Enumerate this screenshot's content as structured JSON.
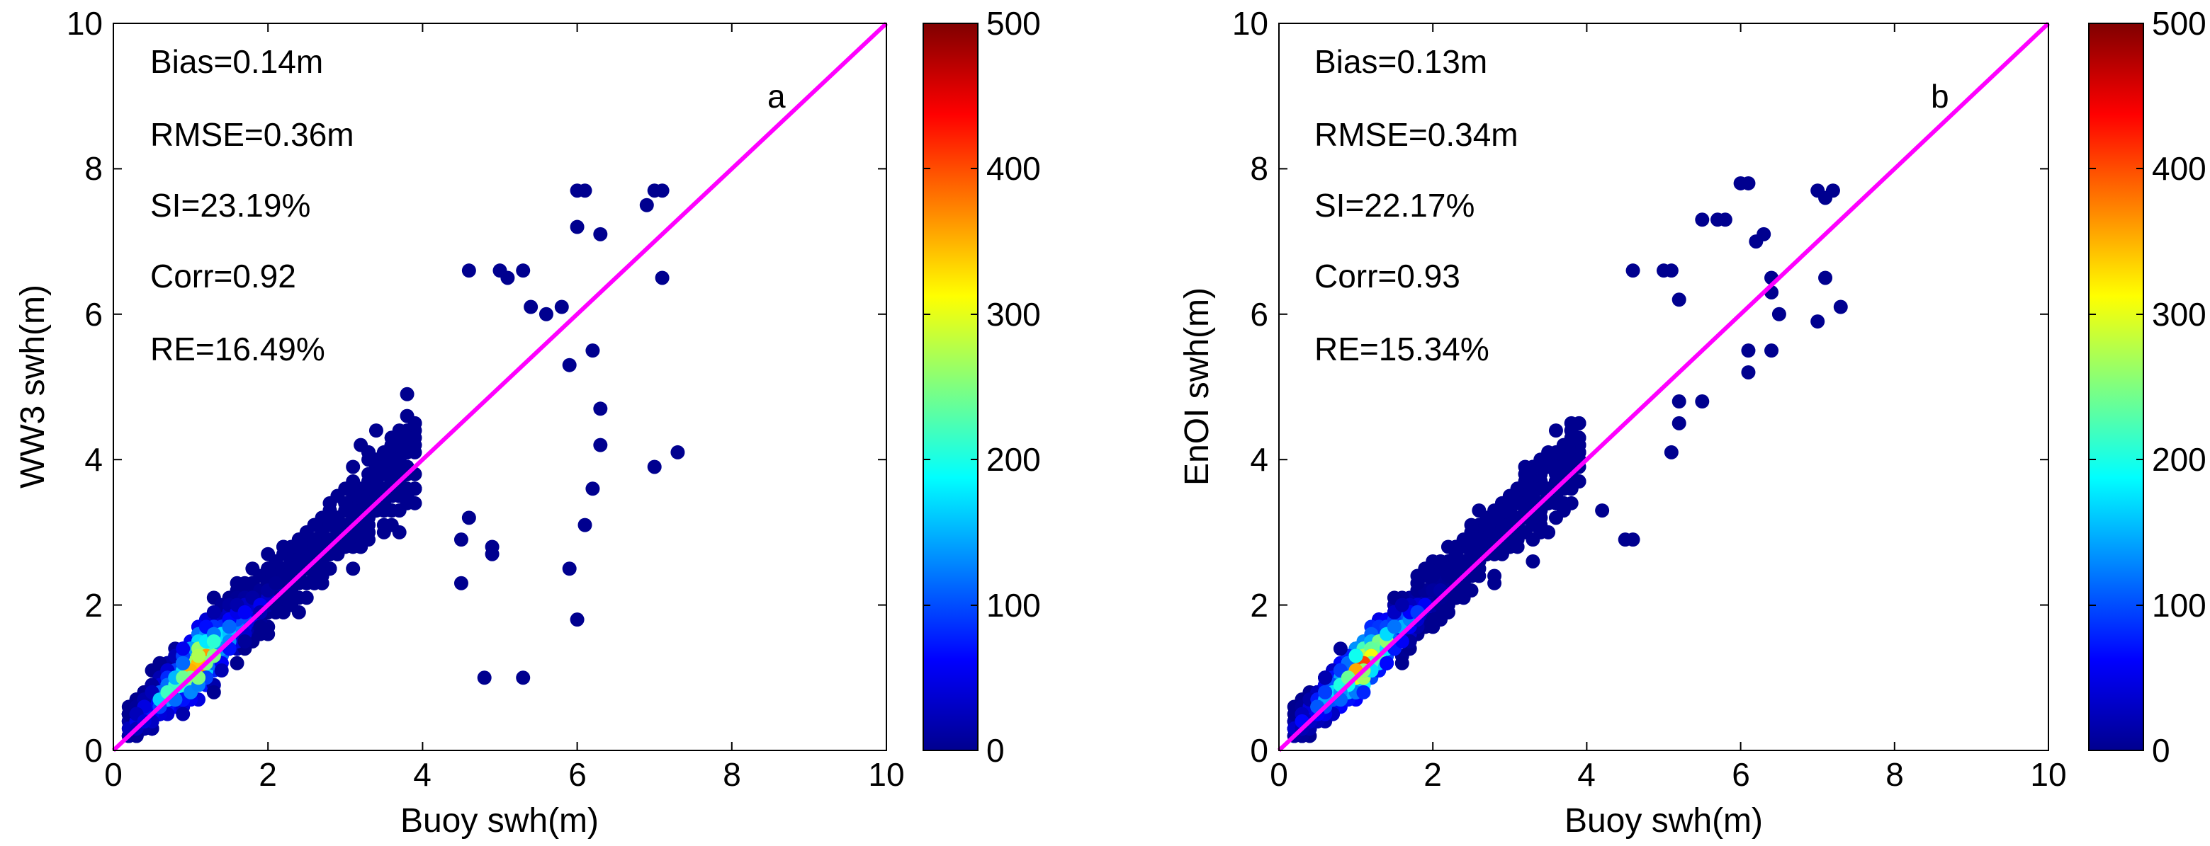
{
  "chart_data": [
    {
      "type": "scatter",
      "panel_label": "a",
      "xlabel": "Buoy swh(m)",
      "ylabel": "WW3 swh(m)",
      "xlim": [
        0,
        10
      ],
      "ylim": [
        0,
        10
      ],
      "xticks": [
        "0",
        "2",
        "4",
        "6",
        "8",
        "10"
      ],
      "yticks": [
        "0",
        "2",
        "4",
        "6",
        "8",
        "10"
      ],
      "stats": [
        "Bias=0.14m",
        "RMSE=0.36m",
        "SI=23.19%",
        "Corr=0.92",
        "RE=16.49%"
      ],
      "reference_line": {
        "x": [
          0,
          10
        ],
        "y": [
          0,
          10
        ],
        "color": "#ff00ff"
      },
      "colorbar": {
        "min": 0,
        "max": 500,
        "ticks": [
          "0",
          "100",
          "200",
          "300",
          "400",
          "500"
        ]
      },
      "cluster": {
        "spread": 0.55,
        "bias": 0.14
      },
      "outliers": [
        [
          4.6,
          6.6
        ],
        [
          5.0,
          6.6
        ],
        [
          5.1,
          6.5
        ],
        [
          5.3,
          6.6
        ],
        [
          5.4,
          6.1
        ],
        [
          5.6,
          6.0
        ],
        [
          5.8,
          6.1
        ],
        [
          6.0,
          7.7
        ],
        [
          6.1,
          7.7
        ],
        [
          6.0,
          7.2
        ],
        [
          6.3,
          7.1
        ],
        [
          6.9,
          7.5
        ],
        [
          7.0,
          7.7
        ],
        [
          7.1,
          7.7
        ],
        [
          7.1,
          6.5
        ],
        [
          6.2,
          5.5
        ],
        [
          6.3,
          4.7
        ],
        [
          6.3,
          4.2
        ],
        [
          6.1,
          3.1
        ],
        [
          6.2,
          3.6
        ],
        [
          7.0,
          3.9
        ],
        [
          7.3,
          4.1
        ],
        [
          5.9,
          2.5
        ],
        [
          6.0,
          1.8
        ],
        [
          5.3,
          1.0
        ],
        [
          4.8,
          1.0
        ],
        [
          5.9,
          5.3
        ],
        [
          4.5,
          2.3
        ],
        [
          4.9,
          2.8
        ],
        [
          4.9,
          2.7
        ],
        [
          4.5,
          2.9
        ],
        [
          4.6,
          3.2
        ]
      ]
    },
    {
      "type": "scatter",
      "panel_label": "b",
      "xlabel": "Buoy swh(m)",
      "ylabel": "EnOI swh(m)",
      "xlim": [
        0,
        10
      ],
      "ylim": [
        0,
        10
      ],
      "xticks": [
        "0",
        "2",
        "4",
        "6",
        "8",
        "10"
      ],
      "yticks": [
        "0",
        "2",
        "4",
        "6",
        "8",
        "10"
      ],
      "stats": [
        "Bias=0.13m",
        "RMSE=0.34m",
        "SI=22.17%",
        "Corr=0.93",
        "RE=15.34%"
      ],
      "reference_line": {
        "x": [
          0,
          10
        ],
        "y": [
          0,
          10
        ],
        "color": "#ff00ff"
      },
      "colorbar": {
        "min": 0,
        "max": 500,
        "ticks": [
          "0",
          "100",
          "200",
          "300",
          "400",
          "500"
        ]
      },
      "cluster": {
        "spread": 0.45,
        "bias": 0.13
      },
      "outliers": [
        [
          4.6,
          6.6
        ],
        [
          5.0,
          6.6
        ],
        [
          5.1,
          6.6
        ],
        [
          5.2,
          6.2
        ],
        [
          5.5,
          7.3
        ],
        [
          5.7,
          7.3
        ],
        [
          5.8,
          7.3
        ],
        [
          6.0,
          7.8
        ],
        [
          6.1,
          7.8
        ],
        [
          6.2,
          7.0
        ],
        [
          6.3,
          7.1
        ],
        [
          6.4,
          6.5
        ],
        [
          7.0,
          7.7
        ],
        [
          7.1,
          7.6
        ],
        [
          7.2,
          7.7
        ],
        [
          7.1,
          6.5
        ],
        [
          7.3,
          6.1
        ],
        [
          7.0,
          5.9
        ],
        [
          6.4,
          6.3
        ],
        [
          6.5,
          6.0
        ],
        [
          6.1,
          5.5
        ],
        [
          6.1,
          5.2
        ],
        [
          6.4,
          5.5
        ],
        [
          5.2,
          4.8
        ],
        [
          5.5,
          4.8
        ],
        [
          4.5,
          2.9
        ],
        [
          4.6,
          2.9
        ],
        [
          4.2,
          3.3
        ],
        [
          5.1,
          4.1
        ],
        [
          5.2,
          4.5
        ]
      ]
    }
  ]
}
